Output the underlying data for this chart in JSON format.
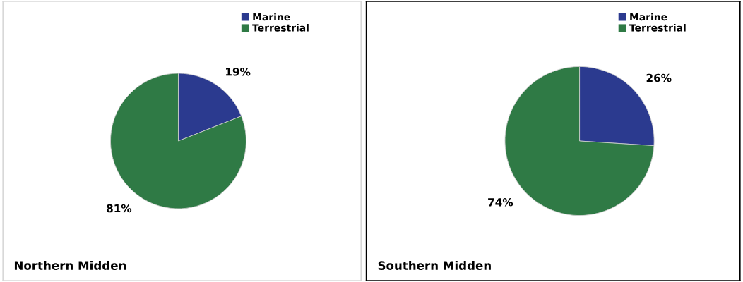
{
  "chart_data": [
    {
      "type": "pie",
      "title": "Northern Midden",
      "categories": [
        "Marine",
        "Terrestrial"
      ],
      "values": [
        19,
        81
      ],
      "colors": [
        "#2b3a8f",
        "#2f7a45"
      ],
      "value_labels": [
        "19%",
        "81%"
      ],
      "legend": "top right"
    },
    {
      "type": "pie",
      "title": "Southern Midden",
      "categories": [
        "Marine",
        "Terrestrial"
      ],
      "values": [
        26,
        74
      ],
      "colors": [
        "#2b3a8f",
        "#2f7a45"
      ],
      "value_labels": [
        "26%",
        "74%"
      ],
      "legend": "top right"
    }
  ]
}
